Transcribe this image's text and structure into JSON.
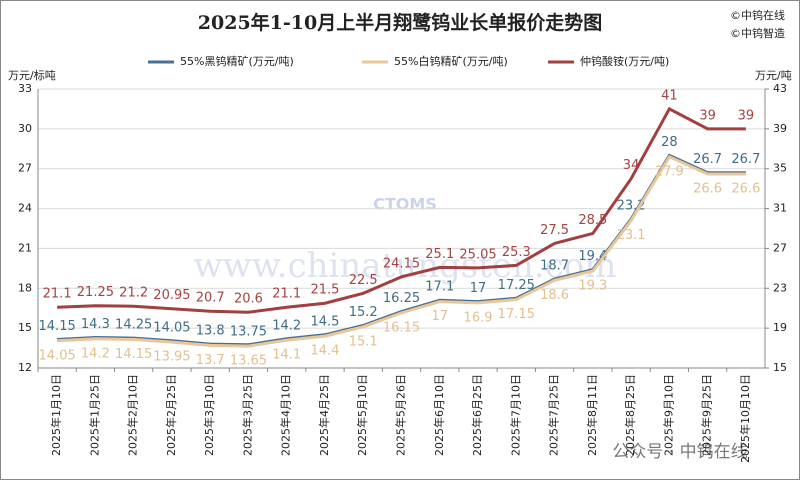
{
  "chart_data": {
    "type": "line",
    "title": "2025年1-10月上半月翔鹭钨业长单报价走势图",
    "copyright": [
      "©中钨在线",
      "©中钨智造"
    ],
    "y_label": "万元/标吨",
    "y2_label": "万元/吨",
    "annotations": [
      "CTOMS",
      "www.chinatungsten.com",
      "公众号 · 中钨在线"
    ],
    "categories": [
      "2025年1月10日",
      "2025年1月25日",
      "2025年2月10日",
      "2025年2月25日",
      "2025年3月10日",
      "2025年3月25日",
      "2025年4月10日",
      "2025年4月25日",
      "2025年5月10日",
      "2025年5月26日",
      "2025年6月10日",
      "2025年6月25日",
      "2025年7月10日",
      "2025年7月25日",
      "2025年8月11日",
      "2025年8月25日",
      "2025年9月10日",
      "2025年9月25日",
      "2025年10月10日"
    ],
    "series": [
      {
        "name": "55%黑钨精矿(万元/吨)",
        "color": "#4a6f95",
        "label_color": "#3e6e86",
        "label_pos": "above",
        "values": [
          14.15,
          14.3,
          14.25,
          14.05,
          13.8,
          13.75,
          14.2,
          14.5,
          15.2,
          16.25,
          17.1,
          17,
          17.25,
          18.7,
          19.4,
          23.2,
          28,
          26.7,
          26.7
        ]
      },
      {
        "name": "55%白钨精矿(万元/吨)",
        "color": "#e8c79a",
        "label_color": "#e2c08e",
        "label_pos": "below",
        "values": [
          14.05,
          14.2,
          14.15,
          13.95,
          13.7,
          13.65,
          14.1,
          14.4,
          15.1,
          16.15,
          17,
          16.9,
          17.15,
          18.6,
          19.3,
          23.1,
          27.9,
          26.6,
          26.6
        ]
      },
      {
        "name": "仲钨酸铵(万元/吨)",
        "color": "#a23f3f",
        "label_color": "#a34343",
        "label_pos": "above",
        "axis": "y2",
        "values": [
          21.1,
          21.25,
          21.2,
          20.95,
          20.7,
          20.6,
          21.1,
          21.5,
          22.5,
          24.15,
          25.1,
          25.05,
          25.3,
          27.5,
          28.5,
          34,
          41,
          39,
          39
        ]
      }
    ],
    "ylim": [
      12,
      33
    ],
    "yticks": [
      12,
      15,
      18,
      21,
      24,
      27,
      30,
      33
    ],
    "y2lim": [
      15,
      43
    ],
    "y2ticks": [
      15,
      19,
      23,
      27,
      31,
      35,
      39,
      43
    ],
    "grid": true
  }
}
